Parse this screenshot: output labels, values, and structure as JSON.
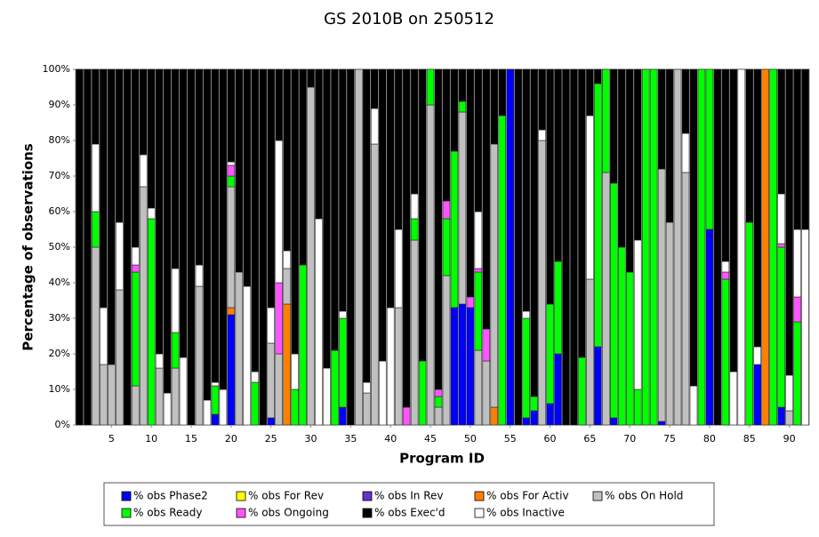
{
  "chart_data": {
    "type": "stacked_bar",
    "title": "GS 2010B on 250512",
    "x_label": "Program ID",
    "y_label": "Percentage of observations",
    "categories": [
      null,
      null,
      null,
      null,
      5,
      null,
      null,
      null,
      null,
      10,
      null,
      null,
      null,
      null,
      15,
      null,
      null,
      null,
      null,
      20,
      null,
      null,
      null,
      null,
      25,
      null,
      null,
      null,
      null,
      30,
      null,
      null,
      null,
      null,
      35,
      null,
      null,
      null,
      null,
      40,
      null,
      null,
      null,
      null,
      45,
      null,
      null,
      null,
      null,
      50,
      null,
      null,
      null,
      null,
      55,
      null,
      null,
      null,
      null,
      60,
      null,
      null,
      null,
      null,
      65,
      null,
      null,
      null,
      null,
      70,
      null,
      null,
      null,
      null,
      75,
      null,
      null,
      null,
      null,
      80,
      null,
      null,
      null,
      null,
      85,
      null,
      null,
      null,
      null,
      90,
      null,
      null
    ],
    "ylim": [
      0,
      100
    ],
    "yticks": [
      {
        "value": 0,
        "label": "0%"
      },
      {
        "value": 10,
        "label": "10%"
      },
      {
        "value": 20,
        "label": "20%"
      },
      {
        "value": 30,
        "label": "30%"
      },
      {
        "value": 40,
        "label": "40%"
      },
      {
        "value": 50,
        "label": "50%"
      },
      {
        "value": 60,
        "label": "60%"
      },
      {
        "value": 70,
        "label": "70%"
      },
      {
        "value": 80,
        "label": "80%"
      },
      {
        "value": 90,
        "label": "90%"
      },
      {
        "value": 100,
        "label": "100%"
      }
    ],
    "series": [
      {
        "name": "% obs Phase2",
        "color": "#0000ff",
        "values": [
          0,
          0,
          0,
          0,
          0,
          0,
          0,
          0,
          0,
          0,
          0,
          0,
          0,
          0,
          0,
          0,
          0,
          3,
          0,
          31,
          0,
          0,
          0,
          0,
          2,
          0,
          0,
          0,
          0,
          0,
          0,
          0,
          0,
          5,
          0,
          0,
          0,
          0,
          0,
          0,
          0,
          0,
          0,
          0,
          0,
          0,
          0,
          33,
          34,
          33,
          0,
          0,
          0,
          0,
          100,
          0,
          2,
          4,
          0,
          6,
          20,
          0,
          0,
          0,
          0,
          22,
          0,
          2,
          0,
          0,
          0,
          0,
          0,
          1,
          0,
          0,
          0,
          0,
          0,
          55,
          0,
          0,
          0,
          0,
          0,
          17,
          0,
          0,
          5,
          0,
          0,
          0
        ]
      },
      {
        "name": "% obs For Rev",
        "color": "#ffff00",
        "values": [
          0,
          0,
          0,
          0,
          0,
          0,
          0,
          0,
          0,
          0,
          0,
          0,
          0,
          0,
          0,
          0,
          0,
          0,
          0,
          0,
          0,
          0,
          0,
          0,
          0,
          0,
          0,
          0,
          0,
          0,
          0,
          0,
          0,
          0,
          0,
          0,
          0,
          0,
          0,
          0,
          0,
          0,
          0,
          0,
          0,
          0,
          0,
          0,
          0,
          0,
          0,
          0,
          0,
          0,
          0,
          0,
          0,
          0,
          0,
          0,
          0,
          0,
          0,
          0,
          0,
          0,
          0,
          0,
          0,
          0,
          0,
          0,
          0,
          0,
          0,
          0,
          0,
          0,
          0,
          0,
          0,
          0,
          0,
          0,
          0,
          0,
          0,
          0,
          0,
          0,
          0,
          0
        ]
      },
      {
        "name": "% obs In Rev",
        "color": "#6633cc",
        "values": [
          0,
          0,
          0,
          0,
          0,
          0,
          0,
          0,
          0,
          0,
          0,
          0,
          0,
          0,
          0,
          0,
          0,
          0,
          0,
          0,
          0,
          0,
          0,
          0,
          0,
          0,
          0,
          0,
          0,
          0,
          0,
          0,
          0,
          0,
          0,
          0,
          0,
          0,
          0,
          0,
          0,
          0,
          0,
          0,
          0,
          0,
          0,
          0,
          0,
          0,
          0,
          0,
          0,
          0,
          0,
          0,
          0,
          0,
          0,
          0,
          0,
          0,
          0,
          0,
          0,
          0,
          0,
          0,
          0,
          0,
          0,
          0,
          0,
          0,
          0,
          0,
          0,
          0,
          0,
          0,
          0,
          0,
          0,
          0,
          0,
          0,
          0,
          0,
          0,
          0,
          0,
          0
        ]
      },
      {
        "name": "% obs For Activ",
        "color": "#ff8000",
        "values": [
          0,
          0,
          0,
          0,
          0,
          0,
          0,
          0,
          0,
          0,
          0,
          0,
          0,
          0,
          0,
          0,
          0,
          0,
          0,
          2,
          0,
          0,
          0,
          0,
          0,
          0,
          34,
          0,
          0,
          0,
          0,
          0,
          0,
          0,
          0,
          0,
          0,
          0,
          0,
          0,
          0,
          0,
          0,
          0,
          0,
          0,
          0,
          0,
          0,
          0,
          0,
          0,
          5,
          0,
          0,
          0,
          0,
          0,
          0,
          0,
          0,
          0,
          0,
          0,
          0,
          0,
          0,
          0,
          0,
          0,
          0,
          0,
          0,
          0,
          0,
          0,
          0,
          0,
          0,
          0,
          0,
          0,
          0,
          0,
          0,
          0,
          100,
          0,
          0,
          0,
          0,
          0
        ]
      },
      {
        "name": "% obs On Hold",
        "color": "#c0c0c0",
        "values": [
          0,
          0,
          50,
          17,
          17,
          38,
          0,
          11,
          67,
          0,
          16,
          0,
          16,
          0,
          0,
          39,
          0,
          0,
          0,
          34,
          43,
          0,
          0,
          0,
          21,
          20,
          10,
          0,
          0,
          95,
          0,
          0,
          0,
          0,
          0,
          100,
          9,
          79,
          0,
          0,
          33,
          0,
          52,
          0,
          90,
          5,
          42,
          0,
          54,
          0,
          21,
          18,
          74,
          0,
          0,
          0,
          0,
          0,
          80,
          0,
          0,
          0,
          0,
          0,
          41,
          0,
          71,
          0,
          0,
          0,
          0,
          0,
          0,
          71,
          57,
          100,
          71,
          0,
          0,
          0,
          0,
          0,
          0,
          0,
          0,
          0,
          0,
          0,
          0,
          4,
          0,
          0
        ]
      },
      {
        "name": "% obs Ready",
        "color": "#00ff00",
        "values": [
          0,
          0,
          10,
          0,
          0,
          0,
          0,
          32,
          0,
          58,
          0,
          0,
          10,
          0,
          0,
          0,
          0,
          8,
          0,
          3,
          0,
          0,
          12,
          0,
          0,
          0,
          0,
          10,
          45,
          0,
          0,
          0,
          21,
          25,
          0,
          0,
          0,
          0,
          0,
          0,
          0,
          0,
          6,
          18,
          10,
          3,
          16,
          44,
          3,
          0,
          22,
          0,
          0,
          87,
          0,
          0,
          28,
          4,
          0,
          28,
          26,
          0,
          0,
          19,
          0,
          74,
          29,
          66,
          50,
          43,
          10,
          100,
          100,
          0,
          0,
          0,
          0,
          0,
          100,
          45,
          0,
          41,
          0,
          0,
          57,
          0,
          0,
          100,
          45,
          0,
          29,
          0
        ]
      },
      {
        "name": "% obs Ongoing",
        "color": "#ff55ff",
        "values": [
          0,
          0,
          0,
          0,
          0,
          0,
          0,
          2,
          0,
          0,
          0,
          0,
          0,
          0,
          0,
          0,
          0,
          0,
          0,
          3,
          0,
          0,
          0,
          0,
          0,
          20,
          0,
          0,
          0,
          0,
          0,
          0,
          0,
          0,
          0,
          0,
          0,
          0,
          0,
          0,
          0,
          5,
          0,
          0,
          0,
          2,
          5,
          0,
          0,
          3,
          1,
          9,
          0,
          0,
          0,
          0,
          0,
          0,
          0,
          0,
          0,
          0,
          0,
          0,
          0,
          0,
          0,
          0,
          0,
          0,
          0,
          0,
          0,
          0,
          0,
          0,
          0,
          0,
          0,
          0,
          0,
          2,
          0,
          0,
          0,
          0,
          0,
          0,
          1,
          0,
          7,
          0
        ]
      },
      {
        "name": "% obs Inactive",
        "color": "#ffffff",
        "values": [
          0,
          0,
          19,
          16,
          0,
          19,
          0,
          5,
          9,
          3,
          4,
          9,
          18,
          19,
          0,
          6,
          7,
          1,
          10,
          1,
          0,
          39,
          3,
          0,
          10,
          40,
          5,
          10,
          0,
          0,
          58,
          16,
          0,
          2,
          0,
          0,
          3,
          10,
          18,
          33,
          22,
          0,
          7,
          0,
          0,
          0,
          0,
          0,
          0,
          0,
          16,
          0,
          0,
          0,
          0,
          0,
          2,
          0,
          3,
          0,
          0,
          0,
          0,
          0,
          46,
          0,
          0,
          0,
          0,
          0,
          42,
          0,
          0,
          0,
          0,
          0,
          11,
          11,
          0,
          0,
          0,
          3,
          15,
          100,
          0,
          5,
          0,
          0,
          14,
          10,
          19,
          55
        ]
      },
      {
        "name": "% obs Exec'd",
        "color": "#000000",
        "values": [
          100,
          100,
          21,
          67,
          83,
          43,
          100,
          50,
          24,
          39,
          80,
          91,
          56,
          81,
          100,
          55,
          93,
          88,
          90,
          26,
          57,
          61,
          85,
          100,
          67,
          20,
          51,
          80,
          55,
          5,
          42,
          84,
          79,
          68,
          100,
          0,
          88,
          11,
          82,
          67,
          45,
          95,
          35,
          82,
          0,
          90,
          37,
          23,
          9,
          64,
          40,
          73,
          21,
          13,
          0,
          100,
          68,
          92,
          17,
          66,
          54,
          100,
          100,
          81,
          13,
          4,
          0,
          32,
          50,
          57,
          48,
          0,
          0,
          28,
          43,
          0,
          18,
          89,
          0,
          0,
          100,
          54,
          85,
          0,
          43,
          78,
          0,
          0,
          35,
          86,
          45,
          45
        ]
      }
    ]
  }
}
